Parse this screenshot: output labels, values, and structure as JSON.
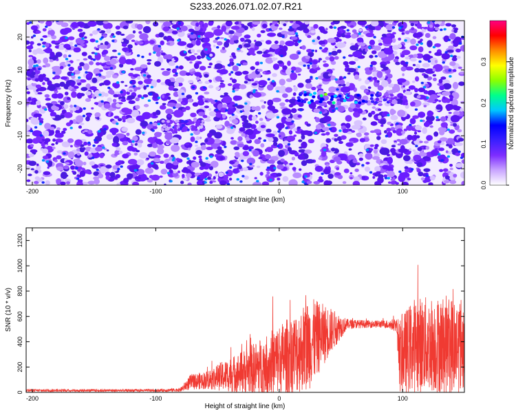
{
  "title": "S233.2026.071.02.07.R21",
  "chart_data": [
    {
      "type": "heatmap",
      "xlabel": "Height of straight line (km)",
      "ylabel": "Frequency (Hz)",
      "xlim": [
        -205,
        150
      ],
      "ylim": [
        -25,
        25
      ],
      "xticks": [
        -200,
        -100,
        0,
        100
      ],
      "yticks": [
        -20,
        -10,
        0,
        10,
        20
      ],
      "colorbar": {
        "label": "Normalized spectral amplitude",
        "range": [
          0.0,
          0.4
        ],
        "ticks": [
          0.0,
          0.1,
          0.2,
          0.3
        ],
        "colors": [
          "#ffffff",
          "#c9a5ff",
          "#7d2cff",
          "#3a1fff",
          "#0000ff",
          "#00c8ff",
          "#00ff8c",
          "#8cff00",
          "#ffff00",
          "#ff8c00",
          "#ff0000",
          "#ff0080"
        ]
      },
      "features": [
        {
          "x_range": [
            15,
            95
          ],
          "y": 1.5,
          "peak_x": 40,
          "peak_value": 0.25,
          "label": ""
        },
        {
          "x_range": [
            -95,
            -60
          ],
          "y": -7,
          "peak_x": -75,
          "peak_value": 0.12,
          "label": ""
        }
      ]
    },
    {
      "type": "line",
      "xlabel": "Height of straight line (km)",
      "ylabel": "SNR (10 * v/v)",
      "xlim": [
        -205,
        150
      ],
      "ylim": [
        0,
        1300
      ],
      "xticks": [
        -200,
        -100,
        0,
        100
      ],
      "yticks": [
        0,
        200,
        400,
        600,
        800,
        1000,
        1200
      ],
      "line_color": "#f03a32",
      "series": [
        {
          "x": [
            -205,
            -150,
            -100,
            -80,
            -72,
            -60,
            -45,
            -30,
            -15,
            0,
            15,
            25,
            40,
            55,
            70,
            85,
            95,
            98,
            110,
            125,
            140,
            150
          ],
          "mean": [
            15,
            15,
            15,
            20,
            80,
            95,
            130,
            160,
            200,
            260,
            320,
            390,
            480,
            540,
            540,
            540,
            530,
            290,
            380,
            380,
            370,
            380
          ],
          "spread": [
            10,
            10,
            10,
            15,
            60,
            70,
            120,
            170,
            230,
            280,
            330,
            360,
            200,
            40,
            30,
            30,
            50,
            300,
            380,
            380,
            400,
            380
          ]
        }
      ]
    }
  ]
}
